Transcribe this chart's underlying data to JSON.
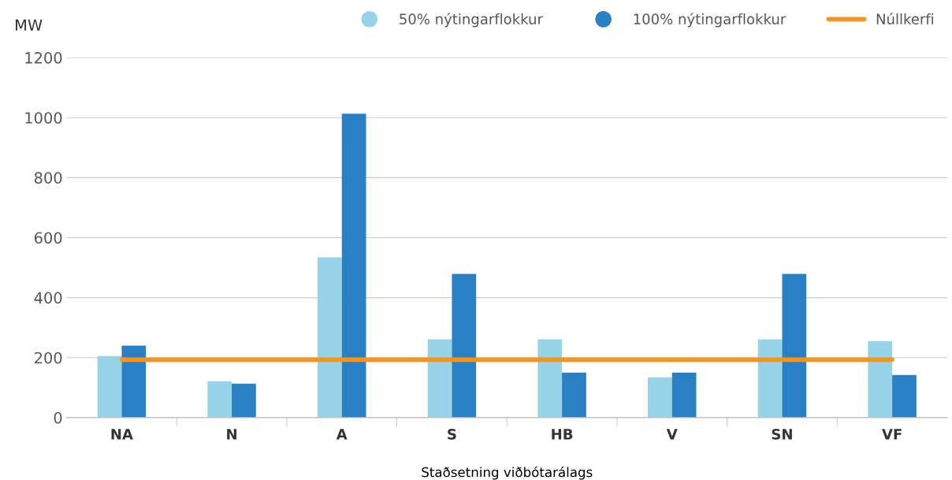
{
  "chart_data": {
    "type": "bar",
    "ylabel": "MW",
    "xlabel": "Staðsetning viðbótarálags",
    "categories": [
      "NA",
      "N",
      "A",
      "S",
      "HB",
      "V",
      "SN",
      "VF"
    ],
    "series": [
      {
        "name": "50% nýtingarflokkur",
        "color": "#96d3e6",
        "values": [
          205,
          121,
          534,
          261,
          261,
          134,
          261,
          255
        ]
      },
      {
        "name": "100% nýtingarflokkur",
        "color": "#2a80c2",
        "values": [
          240,
          113,
          1013,
          479,
          150,
          150,
          479,
          142
        ]
      },
      {
        "name": "Núllkerfi",
        "type": "line",
        "color": "#f7941d",
        "values": [
          193,
          193,
          193,
          193,
          193,
          193,
          193,
          193
        ]
      }
    ],
    "ylim": [
      0,
      1200
    ],
    "yticks": [
      0,
      200,
      400,
      600,
      800,
      1000,
      1200
    ],
    "grid": "y",
    "legend": "top right"
  }
}
